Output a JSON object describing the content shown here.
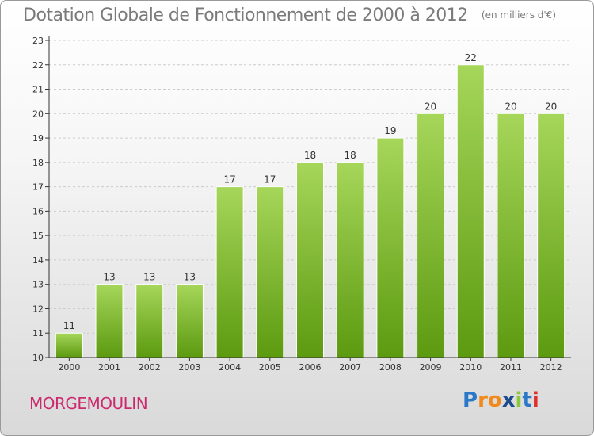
{
  "title": "Dotation Globale de Fonctionnement de 2000 à 2012",
  "unit": "(en milliers d'€)",
  "town": "MORGEMOULIN",
  "logo": {
    "letters": [
      "P",
      "r",
      "o",
      "x",
      "i",
      "t",
      "i"
    ],
    "colors": [
      "#2a78c8",
      "#f08a1c",
      "#f08a1c",
      "#1c4a8c",
      "#8cc83c",
      "#2a78c8",
      "#e0302a"
    ]
  },
  "colors": {
    "bar_top": "#a6d65a",
    "bar_bottom": "#5c9a10",
    "axis": "#333333",
    "grid": "#cccccc"
  },
  "chart_data": {
    "type": "bar",
    "categories": [
      "2000",
      "2001",
      "2002",
      "2003",
      "2004",
      "2005",
      "2006",
      "2007",
      "2008",
      "2009",
      "2010",
      "2011",
      "2012"
    ],
    "values": [
      11,
      13,
      13,
      13,
      17,
      17,
      18,
      18,
      19,
      20,
      22,
      20,
      20
    ],
    "ylim": [
      10,
      23
    ],
    "yticks": [
      10,
      11,
      12,
      13,
      14,
      15,
      16,
      17,
      18,
      19,
      20,
      21,
      22,
      23
    ],
    "ytick_labels": [
      "10",
      "11",
      "12",
      "13",
      "14",
      "15",
      "16",
      "17",
      "18",
      "19",
      "20",
      "21",
      "22",
      "23"
    ],
    "data_labels": [
      "11",
      "13",
      "13",
      "13",
      "17",
      "17",
      "18",
      "18",
      "19",
      "20",
      "22",
      "20",
      "20"
    ],
    "grid": true
  }
}
